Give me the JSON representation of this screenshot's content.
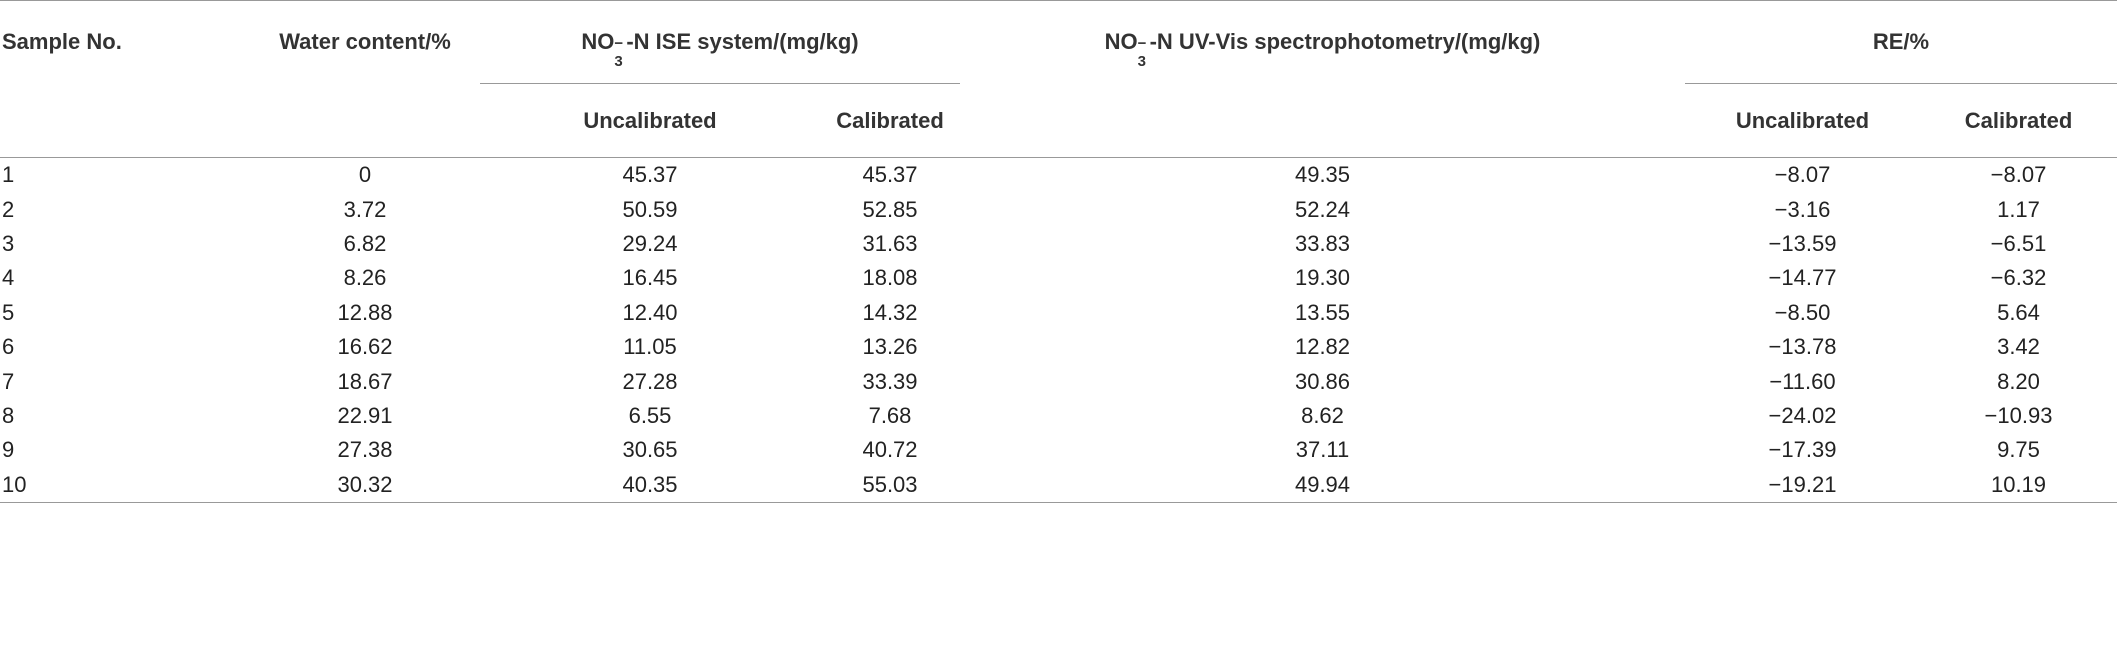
{
  "table": {
    "header": {
      "sample": "Sample No.",
      "water": "Water content/%",
      "ise": {
        "pre": "NO",
        "sub": "3",
        "sup": "−",
        "post": "-N ISE system/(mg/kg)"
      },
      "uv": {
        "pre": "NO",
        "sub": "3",
        "sup": "−",
        "post": "-N UV-Vis spectrophotometry/(mg/kg)"
      },
      "re": "RE/%",
      "ise_sub": [
        "Uncalibrated",
        "Calibrated"
      ],
      "re_sub": [
        "Uncalibrated",
        "Calibrated"
      ]
    },
    "rows": [
      [
        "1",
        "0",
        "45.37",
        "45.37",
        "49.35",
        "−8.07",
        "−8.07"
      ],
      [
        "2",
        "3.72",
        "50.59",
        "52.85",
        "52.24",
        "−3.16",
        "1.17"
      ],
      [
        "3",
        "6.82",
        "29.24",
        "31.63",
        "33.83",
        "−13.59",
        "−6.51"
      ],
      [
        "4",
        "8.26",
        "16.45",
        "18.08",
        "19.30",
        "−14.77",
        "−6.32"
      ],
      [
        "5",
        "12.88",
        "12.40",
        "14.32",
        "13.55",
        "−8.50",
        "5.64"
      ],
      [
        "6",
        "16.62",
        "11.05",
        "13.26",
        "12.82",
        "−13.78",
        "3.42"
      ],
      [
        "7",
        "18.67",
        "27.28",
        "33.39",
        "30.86",
        "−11.60",
        "8.20"
      ],
      [
        "8",
        "22.91",
        "6.55",
        "7.68",
        "8.62",
        "−24.02",
        "−10.93"
      ],
      [
        "9",
        "27.38",
        "30.65",
        "40.72",
        "37.11",
        "−17.39",
        "9.75"
      ],
      [
        "10",
        "30.32",
        "40.35",
        "55.03",
        "49.94",
        "−19.21",
        "10.19"
      ]
    ]
  }
}
